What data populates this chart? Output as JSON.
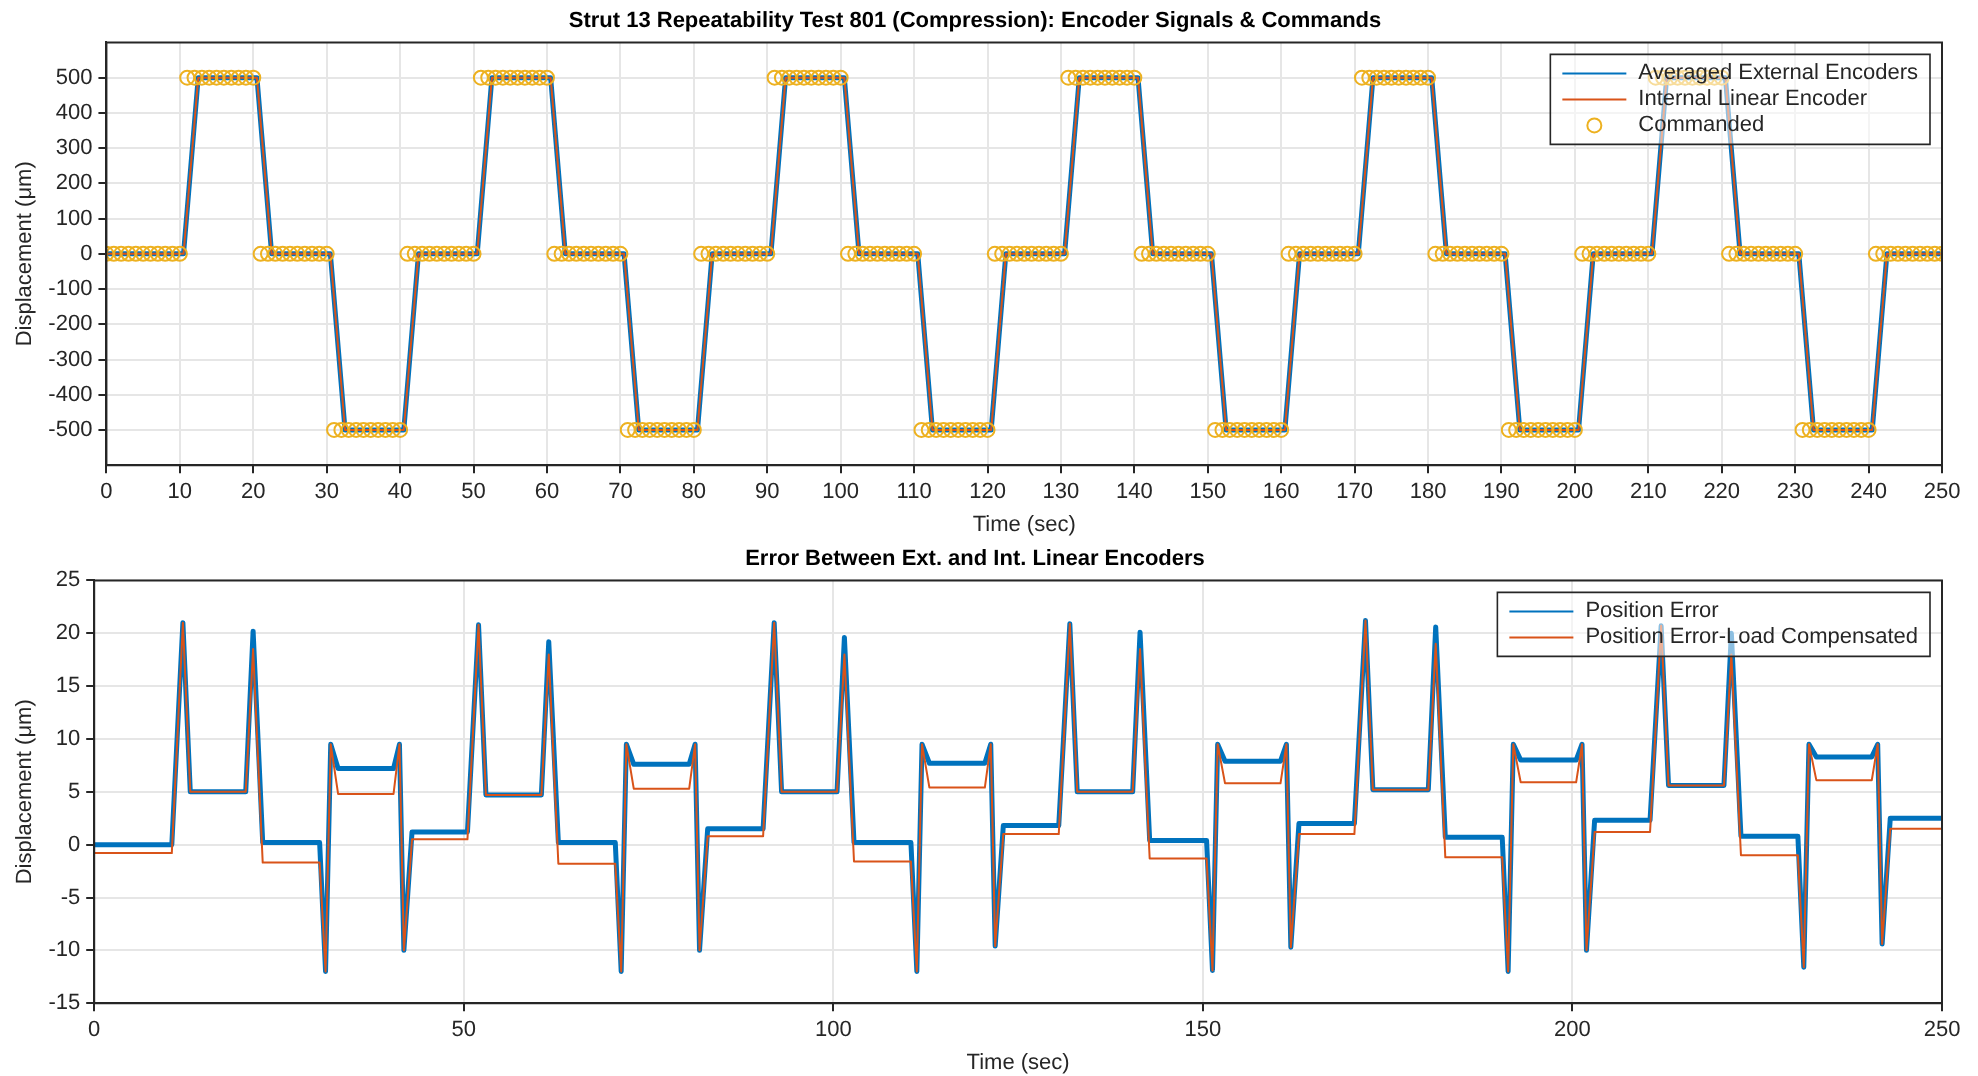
{
  "chart_data": [
    {
      "type": "line",
      "title": "Strut 13 Repeatability Test 801 (Compression): Encoder Signals & Commands",
      "xlabel": "Time (sec)",
      "ylabel": "Displacement (μm)",
      "xlim": [
        0,
        250
      ],
      "xticks": [
        0,
        10,
        20,
        30,
        40,
        50,
        60,
        70,
        80,
        90,
        100,
        110,
        120,
        130,
        140,
        150,
        160,
        170,
        180,
        190,
        200,
        210,
        220,
        230,
        240,
        250
      ],
      "ylim": [
        -600,
        600
      ],
      "yticks": [
        -500,
        -400,
        -300,
        -200,
        -100,
        0,
        100,
        200,
        300,
        400,
        500
      ],
      "grid": true,
      "legend": "top right",
      "series": [
        {
          "name": "Averaged External Encoders",
          "color": "#0072bd",
          "marker": "none",
          "x": [
            0,
            10.5,
            12.5,
            20.5,
            22.5,
            30.5,
            32.5,
            40.5,
            42.5,
            50.5,
            52.5,
            60.5,
            62.5,
            70.5,
            72.5,
            80.5,
            82.5,
            90.5,
            92.5,
            100.5,
            102.5,
            110.5,
            112.5,
            120.5,
            122.5,
            130.5,
            132.5,
            140.5,
            142.5,
            150.5,
            152.5,
            160.5,
            162.5,
            170.5,
            172.5,
            180.5,
            182.5,
            190.5,
            192.5,
            200.5,
            202.5,
            210.5,
            212.5,
            220.5,
            222.5,
            230.5,
            232.5,
            240.5,
            242.5,
            250
          ],
          "values": [
            0,
            0,
            500,
            500,
            0,
            0,
            -500,
            -500,
            0,
            0,
            500,
            500,
            0,
            0,
            -500,
            -500,
            0,
            0,
            500,
            500,
            0,
            0,
            -500,
            -500,
            0,
            0,
            500,
            500,
            0,
            0,
            -500,
            -500,
            0,
            0,
            500,
            500,
            0,
            0,
            -500,
            -500,
            0,
            0,
            500,
            500,
            0,
            0,
            -500,
            -500,
            0,
            0
          ]
        },
        {
          "name": "Internal Linear Encoder",
          "color": "#d95319",
          "marker": "none",
          "x": [
            0,
            10.5,
            12.5,
            20.5,
            22.5,
            30.5,
            32.5,
            40.5,
            42.5,
            50.5,
            52.5,
            60.5,
            62.5,
            70.5,
            72.5,
            80.5,
            82.5,
            90.5,
            92.5,
            100.5,
            102.5,
            110.5,
            112.5,
            120.5,
            122.5,
            130.5,
            132.5,
            140.5,
            142.5,
            150.5,
            152.5,
            160.5,
            162.5,
            170.5,
            172.5,
            180.5,
            182.5,
            190.5,
            192.5,
            200.5,
            202.5,
            210.5,
            212.5,
            220.5,
            222.5,
            230.5,
            232.5,
            240.5,
            242.5,
            250
          ],
          "values": [
            0,
            0,
            500,
            500,
            0,
            0,
            -500,
            -500,
            0,
            0,
            500,
            500,
            0,
            0,
            -500,
            -500,
            0,
            0,
            500,
            500,
            0,
            0,
            -500,
            -500,
            0,
            0,
            500,
            500,
            0,
            0,
            -500,
            -500,
            0,
            0,
            500,
            500,
            0,
            0,
            -500,
            -500,
            0,
            0,
            500,
            500,
            0,
            0,
            -500,
            -500,
            0,
            0
          ]
        },
        {
          "name": "Commanded",
          "color": "#edb120",
          "type": "scatter",
          "marker": "circle",
          "x": [
            0,
            1,
            2,
            3,
            4,
            5,
            6,
            7,
            8,
            9,
            10,
            11,
            12,
            13,
            14,
            15,
            16,
            17,
            18,
            19,
            20,
            21,
            22,
            23,
            24,
            25,
            26,
            27,
            28,
            29,
            30,
            31,
            32,
            33,
            34,
            35,
            36,
            37,
            38,
            39,
            40,
            41,
            42,
            43,
            44,
            45,
            46,
            47,
            48,
            49,
            50,
            51,
            52,
            53,
            54,
            55,
            56,
            57,
            58,
            59,
            60,
            61,
            62,
            63,
            64,
            65,
            66,
            67,
            68,
            69,
            70,
            71,
            72,
            73,
            74,
            75,
            76,
            77,
            78,
            79,
            80,
            81,
            82,
            83,
            84,
            85,
            86,
            87,
            88,
            89,
            90,
            91,
            92,
            93,
            94,
            95,
            96,
            97,
            98,
            99,
            100,
            101,
            102,
            103,
            104,
            105,
            106,
            107,
            108,
            109,
            110,
            111,
            112,
            113,
            114,
            115,
            116,
            117,
            118,
            119,
            120,
            121,
            122,
            123,
            124,
            125,
            126,
            127,
            128,
            129,
            130,
            131,
            132,
            133,
            134,
            135,
            136,
            137,
            138,
            139,
            140,
            141,
            142,
            143,
            144,
            145,
            146,
            147,
            148,
            149,
            150,
            151,
            152,
            153,
            154,
            155,
            156,
            157,
            158,
            159,
            160,
            161,
            162,
            163,
            164,
            165,
            166,
            167,
            168,
            169,
            170,
            171,
            172,
            173,
            174,
            175,
            176,
            177,
            178,
            179,
            180,
            181,
            182,
            183,
            184,
            185,
            186,
            187,
            188,
            189,
            190,
            191,
            192,
            193,
            194,
            195,
            196,
            197,
            198,
            199,
            200,
            201,
            202,
            203,
            204,
            205,
            206,
            207,
            208,
            209,
            210,
            211,
            212,
            213,
            214,
            215,
            216,
            217,
            218,
            219,
            220,
            221,
            222,
            223,
            224,
            225,
            226,
            227,
            228,
            229,
            230,
            231,
            232,
            233,
            234,
            235,
            236,
            237,
            238,
            239,
            240,
            241,
            242,
            243,
            244,
            245,
            246,
            247,
            248,
            249,
            250
          ],
          "values": [
            0,
            0,
            0,
            0,
            0,
            0,
            0,
            0,
            0,
            0,
            0,
            500,
            500,
            500,
            500,
            500,
            500,
            500,
            500,
            500,
            500,
            0,
            0,
            0,
            0,
            0,
            0,
            0,
            0,
            0,
            0,
            -500,
            -500,
            -500,
            -500,
            -500,
            -500,
            -500,
            -500,
            -500,
            -500,
            0,
            0,
            0,
            0,
            0,
            0,
            0,
            0,
            0,
            0,
            500,
            500,
            500,
            500,
            500,
            500,
            500,
            500,
            500,
            500,
            0,
            0,
            0,
            0,
            0,
            0,
            0,
            0,
            0,
            0,
            -500,
            -500,
            -500,
            -500,
            -500,
            -500,
            -500,
            -500,
            -500,
            -500,
            0,
            0,
            0,
            0,
            0,
            0,
            0,
            0,
            0,
            0,
            500,
            500,
            500,
            500,
            500,
            500,
            500,
            500,
            500,
            500,
            0,
            0,
            0,
            0,
            0,
            0,
            0,
            0,
            0,
            0,
            -500,
            -500,
            -500,
            -500,
            -500,
            -500,
            -500,
            -500,
            -500,
            -500,
            0,
            0,
            0,
            0,
            0,
            0,
            0,
            0,
            0,
            0,
            500,
            500,
            500,
            500,
            500,
            500,
            500,
            500,
            500,
            500,
            0,
            0,
            0,
            0,
            0,
            0,
            0,
            0,
            0,
            0,
            -500,
            -500,
            -500,
            -500,
            -500,
            -500,
            -500,
            -500,
            -500,
            -500,
            0,
            0,
            0,
            0,
            0,
            0,
            0,
            0,
            0,
            0,
            500,
            500,
            500,
            500,
            500,
            500,
            500,
            500,
            500,
            500,
            0,
            0,
            0,
            0,
            0,
            0,
            0,
            0,
            0,
            0,
            -500,
            -500,
            -500,
            -500,
            -500,
            -500,
            -500,
            -500,
            -500,
            -500,
            0,
            0,
            0,
            0,
            0,
            0,
            0,
            0,
            0,
            0,
            500,
            500,
            500,
            500,
            500,
            500,
            500,
            500,
            500,
            500,
            0,
            0,
            0,
            0,
            0,
            0,
            0,
            0,
            0,
            0,
            -500,
            -500,
            -500,
            -500,
            -500,
            -500,
            -500,
            -500,
            -500,
            -500,
            0,
            0,
            0,
            0,
            0,
            0,
            0,
            0,
            0,
            0
          ]
        }
      ]
    },
    {
      "type": "line",
      "title": "Error Between Ext. and Int. Linear Encoders",
      "xlabel": "Time (sec)",
      "ylabel": "Displacement (μm)",
      "xlim": [
        0,
        250
      ],
      "xticks": [
        0,
        50,
        100,
        150,
        200,
        250
      ],
      "ylim": [
        -15,
        25
      ],
      "yticks": [
        -15,
        -10,
        -5,
        0,
        5,
        10,
        15,
        20,
        25
      ],
      "grid": true,
      "legend": "top right",
      "x": [
        0,
        10.5,
        12,
        13,
        20.5,
        21.5,
        22.8,
        30.5,
        31.3,
        32,
        33,
        40.5,
        41.3,
        41.9,
        43,
        50.5,
        52,
        53,
        60.5,
        61.5,
        62.8,
        70.5,
        71.3,
        72,
        73,
        80.5,
        81.3,
        81.9,
        83,
        90.5,
        92,
        93,
        100.5,
        101.5,
        102.8,
        110.5,
        111.3,
        112,
        113,
        120.5,
        121.3,
        121.9,
        123,
        130.5,
        132,
        133,
        140.5,
        141.5,
        142.8,
        150.5,
        151.3,
        152,
        153,
        160.5,
        161.3,
        161.9,
        163,
        170.5,
        172,
        173,
        180.5,
        181.5,
        182.8,
        190.5,
        191.3,
        192,
        193,
        200.5,
        201.3,
        201.9,
        203,
        210.5,
        212,
        213,
        220.5,
        221.5,
        222.8,
        230.5,
        231.3,
        232,
        233,
        240.5,
        241.3,
        241.9,
        243,
        250
      ],
      "series": [
        {
          "name": "Position Error",
          "color": "#0072bd",
          "values": [
            0,
            0,
            21,
            5,
            5,
            20.2,
            0.2,
            0.2,
            -12,
            9.5,
            7.2,
            7.2,
            9.5,
            -10,
            1.2,
            1.2,
            20.8,
            4.7,
            4.7,
            19.2,
            0.2,
            0.2,
            -12,
            9.5,
            7.6,
            7.6,
            9.5,
            -10,
            1.5,
            1.5,
            21,
            5,
            5,
            19.6,
            0.2,
            0.2,
            -12,
            9.5,
            7.7,
            7.7,
            9.5,
            -9.6,
            1.8,
            1.8,
            20.9,
            5,
            5,
            20.1,
            0.4,
            0.4,
            -11.9,
            9.5,
            7.9,
            7.9,
            9.5,
            -9.7,
            2,
            2,
            21.2,
            5.2,
            5.2,
            20.6,
            0.7,
            0.7,
            -12,
            9.5,
            8,
            8,
            9.5,
            -10,
            2.3,
            2.3,
            20.7,
            5.6,
            5.6,
            20,
            0.8,
            0.8,
            -11.6,
            9.5,
            8.3,
            8.3,
            9.5,
            -9.4,
            2.5,
            2.5
          ]
        },
        {
          "name": "Position Error-Load Compensated",
          "color": "#d95319",
          "values": [
            -0.8,
            -0.8,
            21,
            5,
            5,
            18.5,
            -1.7,
            -1.7,
            -12,
            9.5,
            4.8,
            4.8,
            9.5,
            -10,
            0.5,
            0.5,
            20.8,
            4.7,
            4.7,
            18,
            -1.8,
            -1.8,
            -12,
            9.5,
            5.3,
            5.3,
            9.5,
            -10,
            0.8,
            0.8,
            21,
            5,
            5,
            18,
            -1.6,
            -1.6,
            -12,
            9.5,
            5.4,
            5.4,
            9.5,
            -9.6,
            1,
            1,
            20.9,
            5,
            5,
            18.5,
            -1.3,
            -1.3,
            -11.9,
            9.5,
            5.8,
            5.8,
            9.5,
            -9.7,
            1,
            1,
            21.2,
            5.2,
            5.2,
            19,
            -1.2,
            -1.2,
            -12,
            9.5,
            5.9,
            5.9,
            9.5,
            -10,
            1.2,
            1.2,
            20.7,
            5.6,
            5.6,
            18,
            -1,
            -1,
            -11.6,
            9.5,
            6.1,
            6.1,
            9.5,
            -9.4,
            1.5,
            1.5
          ]
        }
      ]
    }
  ]
}
